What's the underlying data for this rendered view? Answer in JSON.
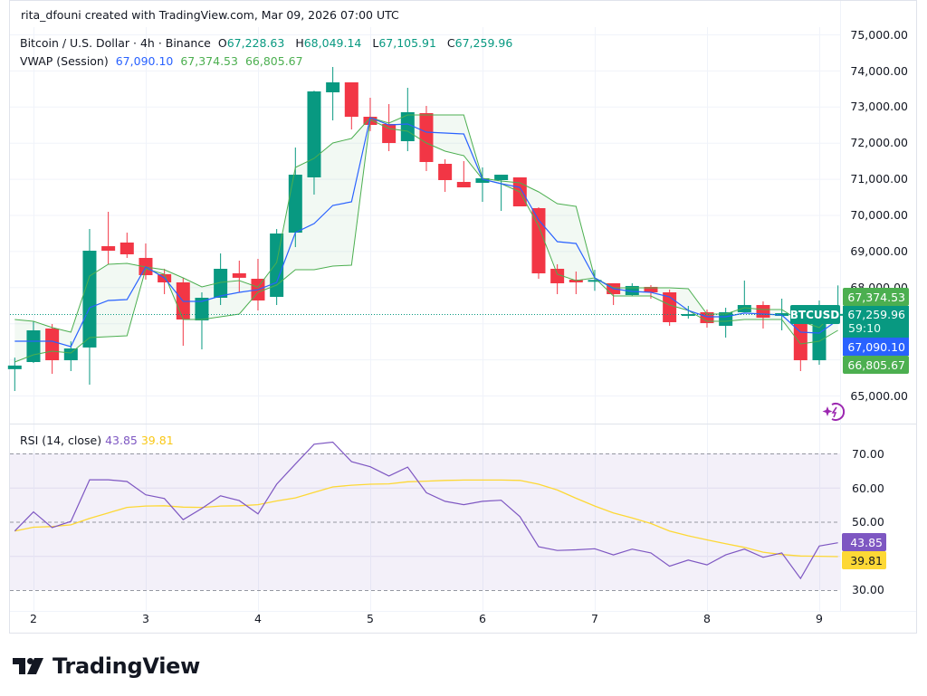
{
  "header": {
    "attribution": "rita_dfouni created with TradingView.com, Mar 09, 2026 07:00 UTC"
  },
  "legend": {
    "symbol": "Bitcoin / U.S. Dollar · 4h · Binance",
    "o_label": "O",
    "o_value": "67,228.63",
    "h_label": "H",
    "h_value": "68,049.14",
    "l_label": "L",
    "l_value": "67,105.91",
    "c_label": "C",
    "c_value": "67,259.96",
    "vwap_label": "VWAP (Session)",
    "vwap_value": "67,090.10",
    "vwap_upper": "67,374.53",
    "vwap_lower": "66,805.67"
  },
  "rsi_legend": {
    "label": "RSI (14, close)",
    "rsi_value": "43.85",
    "ma_value": "39.81"
  },
  "price_axis": {
    "ticks": [
      "75,000.00",
      "74,000.00",
      "73,000.00",
      "72,000.00",
      "71,000.00",
      "70,000.00",
      "69,000.00",
      "68,000.00",
      "65,000.00"
    ],
    "badges": {
      "upper": "67,374.53",
      "last": "67,259.96",
      "countdown": "59:10",
      "vwap": "67,090.10",
      "lower": "66,805.67",
      "symbol": "BTCUSD"
    }
  },
  "rsi_axis": {
    "ticks": [
      "70.00",
      "60.00",
      "50.00",
      "30.00"
    ],
    "badges": {
      "rsi": "43.85",
      "ma": "39.81"
    }
  },
  "time_axis": {
    "ticks": [
      "2",
      "3",
      "4",
      "5",
      "6",
      "7",
      "8",
      "9"
    ]
  },
  "logo": {
    "text": "TradingView"
  },
  "colors": {
    "up": "#089981",
    "down": "#f23645",
    "vwap": "#2962ff",
    "bands": "#4caf50",
    "rsi": "#7e57c2",
    "rsi_ma": "#fdd835"
  },
  "chart_data": [
    {
      "type": "candlestick",
      "title": "Bitcoin / U.S. Dollar · 4h · Binance",
      "x_ticks": [
        "2",
        "3",
        "4",
        "5",
        "6",
        "7",
        "8",
        "9"
      ],
      "ylim": [
        64500,
        75200
      ],
      "grid": true,
      "candles": [
        [
          65730,
          66050,
          65125,
          65830
        ],
        [
          65927,
          67055,
          65900,
          66805
        ],
        [
          66855,
          66980,
          65600,
          65977
        ],
        [
          65977,
          66500,
          65677,
          66303
        ],
        [
          66330,
          69610,
          65300,
          69010
        ],
        [
          69135,
          70088,
          68634,
          69010
        ],
        [
          69236,
          69510,
          68810,
          68910
        ],
        [
          68810,
          69210,
          68210,
          68333
        ],
        [
          68360,
          68510,
          67807,
          68133
        ],
        [
          68133,
          68260,
          66378,
          67105
        ],
        [
          67080,
          67857,
          66278,
          67707
        ],
        [
          67707,
          68935,
          67506,
          68509
        ],
        [
          68385,
          68734,
          67857,
          68260
        ],
        [
          68233,
          68784,
          67356,
          67632
        ],
        [
          67732,
          69610,
          67506,
          69486
        ],
        [
          69510,
          71867,
          69110,
          71115
        ],
        [
          71040,
          73440,
          70564,
          73421
        ],
        [
          73396,
          74098,
          72619,
          73672
        ],
        [
          73672,
          73672,
          72368,
          72719
        ],
        [
          72719,
          73246,
          72320,
          72494
        ],
        [
          72519,
          73070,
          71767,
          71992
        ],
        [
          72043,
          73521,
          71767,
          72845
        ],
        [
          72820,
          73020,
          71216,
          71466
        ],
        [
          71416,
          71541,
          70639,
          70965
        ],
        [
          70915,
          71491,
          70764,
          70764
        ],
        [
          70890,
          71316,
          70363,
          71015
        ],
        [
          70965,
          71115,
          70113,
          71115
        ],
        [
          71040,
          71040,
          70238,
          70238
        ],
        [
          70188,
          70213,
          68233,
          68383
        ],
        [
          68509,
          68634,
          67807,
          68108
        ],
        [
          68208,
          68434,
          67807,
          68133
        ],
        [
          68150,
          68480,
          67900,
          68200
        ],
        [
          68108,
          68108,
          67506,
          67807
        ],
        [
          67782,
          68108,
          67757,
          68033
        ],
        [
          68008,
          68058,
          67682,
          67857
        ],
        [
          67857,
          67932,
          66930,
          67030
        ],
        [
          67230,
          67481,
          67130,
          67255
        ],
        [
          67306,
          67381,
          66880,
          67005
        ],
        [
          66930,
          67431,
          66604,
          67306
        ],
        [
          67306,
          68183,
          67306,
          67506
        ],
        [
          67506,
          67606,
          66855,
          67155
        ],
        [
          67205,
          67682,
          66805,
          67280
        ],
        [
          67160,
          67400,
          65677,
          65977
        ],
        [
          65977,
          67631,
          65852,
          66980
        ],
        [
          67228.63,
          68049.14,
          67105.91,
          67259.96
        ]
      ],
      "series": [
        {
          "name": "VWAP (Session)",
          "values": [
            66505,
            66505,
            66505,
            66354,
            67432,
            67632,
            67657,
            68560,
            68259,
            67607,
            67607,
            67758,
            67858,
            67930,
            68134,
            69512,
            69762,
            70264,
            70364,
            72694,
            72494,
            72519,
            72294,
            72268,
            72243,
            70990,
            70865,
            70765,
            69863,
            69261,
            69211,
            68259,
            67958,
            67883,
            67858,
            67733,
            67357,
            67181,
            67181,
            67282,
            67256,
            67231,
            66755,
            66730,
            67090.1
          ]
        },
        {
          "values": [
            67106,
            67056,
            66881,
            66755,
            68309,
            68635,
            68660,
            68560,
            68484,
            68259,
            68008,
            68134,
            68184,
            68000,
            68685,
            71316,
            71567,
            71993,
            72118,
            72694,
            72544,
            72770,
            72770,
            72770,
            72770,
            71015,
            70940,
            70890,
            70640,
            70314,
            70239,
            68259,
            67983,
            67983,
            67983,
            67983,
            67958,
            67256,
            67256,
            67432,
            67382,
            67382,
            67056,
            66881,
            67374.53
          ]
        },
        {
          "values": [
            65928,
            66129,
            66229,
            66179,
            66605,
            66630,
            66655,
            68509,
            68359,
            67106,
            67106,
            67181,
            67256,
            67860,
            68058,
            68484,
            68484,
            68585,
            68610,
            72644,
            72394,
            72319,
            71993,
            71767,
            71642,
            70990,
            70865,
            70640,
            69687,
            68359,
            68184,
            68259,
            67758,
            67758,
            67758,
            67507,
            67357,
            67056,
            67056,
            67106,
            67106,
            67106,
            66429,
            66505,
            66805.67
          ]
        }
      ]
    },
    {
      "type": "line",
      "title": "RSI (14, close)",
      "x_ticks": [
        "2",
        "3",
        "4",
        "5",
        "6",
        "7",
        "8",
        "9"
      ],
      "ylim": [
        25,
        77
      ],
      "y_ticks": [
        70,
        60,
        50,
        30
      ],
      "band": [
        30,
        70
      ],
      "series": [
        {
          "name": "RSI",
          "values": [
            47.3,
            52.9,
            48.3,
            50.1,
            62.3,
            62.3,
            61.8,
            57.9,
            56.8,
            50.6,
            53.9,
            57.6,
            56.2,
            52.3,
            61.0,
            66.9,
            72.7,
            73.3,
            67.6,
            66.1,
            63.4,
            66.0,
            58.5,
            56.0,
            55.0,
            56.0,
            56.3,
            51.5,
            42.7,
            41.6,
            41.8,
            42.1,
            40.3,
            42.0,
            40.9,
            37.0,
            38.8,
            37.4,
            40.3,
            42.0,
            39.6,
            40.9,
            33.4,
            42.9,
            43.85
          ]
        },
        {
          "name": "RSI MA",
          "values": [
            47.3,
            48.4,
            48.6,
            49.1,
            51.0,
            52.6,
            54.2,
            54.6,
            54.7,
            54.3,
            54.2,
            54.6,
            54.7,
            55.0,
            56.1,
            57.0,
            58.6,
            60.2,
            60.7,
            61.0,
            61.1,
            61.7,
            61.9,
            62.1,
            62.2,
            62.2,
            62.2,
            62.1,
            61.0,
            59.3,
            56.9,
            54.6,
            52.6,
            51.1,
            49.5,
            47.3,
            45.9,
            44.7,
            43.6,
            42.5,
            41.1,
            40.4,
            40.0,
            39.9,
            39.81
          ]
        }
      ]
    }
  ]
}
